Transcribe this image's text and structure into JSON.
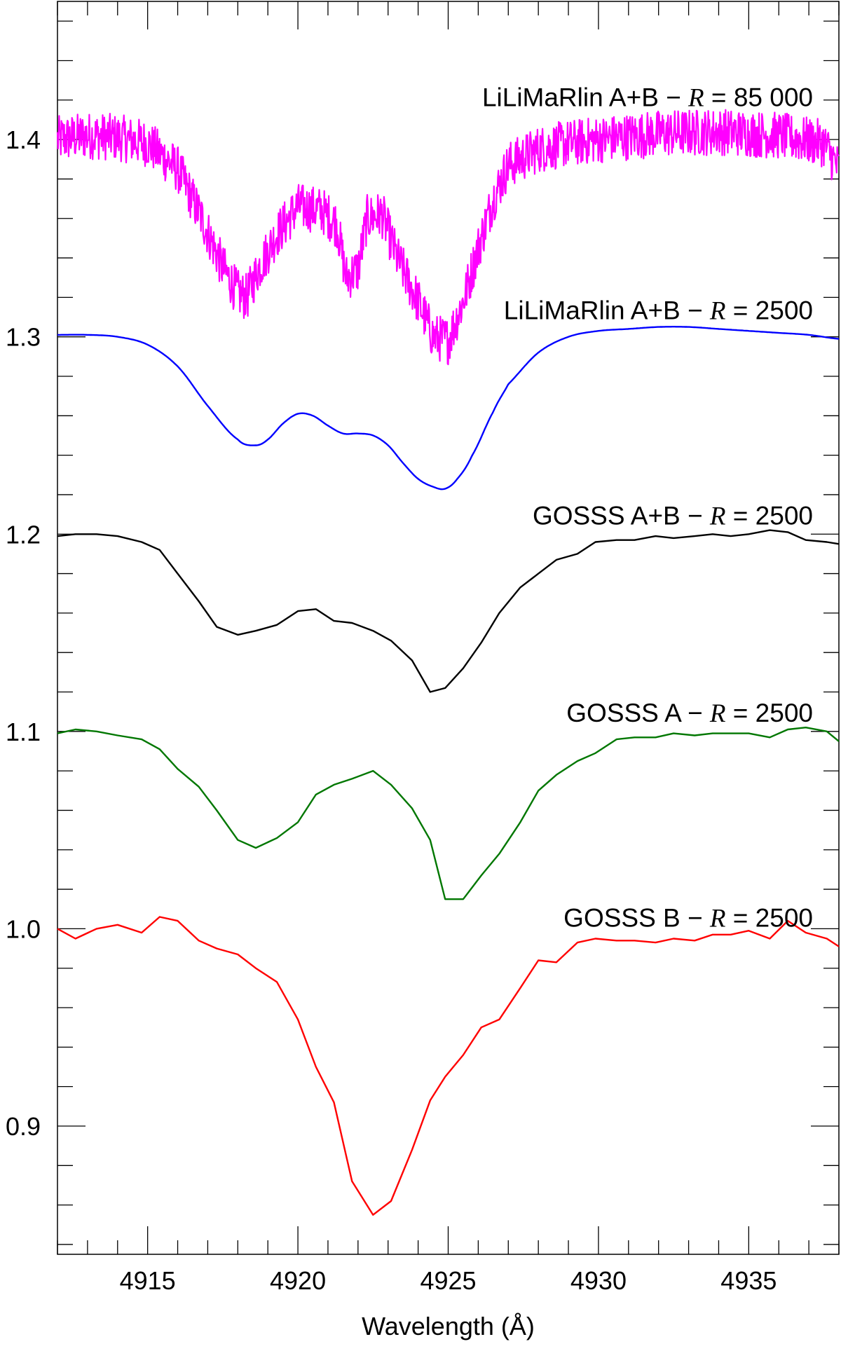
{
  "chart_data": {
    "type": "line",
    "xlabel": "Wavelength (Å)",
    "ylabel": "",
    "xlim": [
      4912.0,
      4938.0
    ],
    "ylim": [
      0.835,
      1.47
    ],
    "x_ticks": [
      4915,
      4920,
      4925,
      4930,
      4935
    ],
    "x_tick_labels": [
      "4915",
      "4920",
      "4925",
      "4930",
      "4935"
    ],
    "y_ticks": [
      0.9,
      1.0,
      1.1,
      1.2,
      1.3,
      1.4
    ],
    "y_tick_labels": [
      "0.9",
      "1.0",
      "1.1",
      "1.2",
      "1.3",
      "1.4"
    ],
    "grid": false,
    "legend": "none",
    "series": [
      {
        "name": "LiLiMaRlin A+B",
        "label_prefix": "LiLiMaRlin A+B − ",
        "label_r": "R",
        "label_suffix": " = 85 000",
        "color": "#ff00ff",
        "noise": 0.012,
        "x": [
          4912.0,
          4913.0,
          4914.0,
          4915.0,
          4916.0,
          4916.8,
          4917.5,
          4918.0,
          4918.3,
          4918.7,
          4919.3,
          4920.0,
          4920.8,
          4921.3,
          4921.6,
          4922.0,
          4922.3,
          4922.8,
          4923.3,
          4924.0,
          4924.5,
          4925.0,
          4925.5,
          4926.0,
          4926.5,
          4927.0,
          4928.0,
          4929.0,
          4930.0,
          4932.0,
          4934.0,
          4936.0,
          4937.5,
          4938.0
        ],
        "y": [
          1.4,
          1.402,
          1.401,
          1.398,
          1.385,
          1.36,
          1.335,
          1.322,
          1.32,
          1.335,
          1.352,
          1.366,
          1.364,
          1.357,
          1.33,
          1.334,
          1.36,
          1.362,
          1.34,
          1.318,
          1.3,
          1.298,
          1.318,
          1.345,
          1.37,
          1.387,
          1.395,
          1.398,
          1.4,
          1.403,
          1.404,
          1.402,
          1.398,
          1.385
        ]
      },
      {
        "name": "LiLiMaRlin A+B",
        "label_prefix": "LiLiMaRlin A+B − ",
        "label_r": "R",
        "label_suffix": " = 2500",
        "color": "#0000ff",
        "noise": 0,
        "x": [
          4912.0,
          4913.0,
          4914.0,
          4915.0,
          4916.0,
          4917.0,
          4918.0,
          4918.6,
          4919.0,
          4919.5,
          4920.0,
          4920.5,
          4921.0,
          4921.5,
          4922.0,
          4922.5,
          4923.0,
          4923.5,
          4924.0,
          4924.5,
          4924.9,
          4925.3,
          4925.8,
          4926.5,
          4927.0,
          4928.0,
          4929.0,
          4930.0,
          4931.0,
          4932.0,
          4933.0,
          4934.0,
          4935.0,
          4936.0,
          4937.0,
          4938.0
        ],
        "y": [
          1.301,
          1.301,
          1.3,
          1.296,
          1.285,
          1.265,
          1.248,
          1.245,
          1.248,
          1.256,
          1.261,
          1.26,
          1.255,
          1.251,
          1.251,
          1.25,
          1.245,
          1.236,
          1.228,
          1.224,
          1.223,
          1.228,
          1.24,
          1.262,
          1.276,
          1.292,
          1.3,
          1.303,
          1.304,
          1.305,
          1.305,
          1.304,
          1.303,
          1.302,
          1.301,
          1.299
        ]
      },
      {
        "name": "GOSSS A+B",
        "label_prefix": "GOSSS A+B − ",
        "label_r": "R",
        "label_suffix": " = 2500",
        "color": "#000000",
        "noise": 0,
        "x": [
          4912.0,
          4912.6,
          4913.3,
          4914.0,
          4914.8,
          4915.4,
          4916.0,
          4916.7,
          4917.3,
          4918.0,
          4918.6,
          4919.3,
          4920.0,
          4920.6,
          4921.2,
          4921.8,
          4922.5,
          4923.1,
          4923.8,
          4924.4,
          4924.9,
          4925.5,
          4926.1,
          4926.7,
          4927.4,
          4928.0,
          4928.6,
          4929.3,
          4929.9,
          4930.6,
          4931.2,
          4931.9,
          4932.5,
          4933.2,
          4933.8,
          4934.4,
          4935.0,
          4935.7,
          4936.3,
          4936.9,
          4937.6,
          4938.0
        ],
        "y": [
          1.199,
          1.2,
          1.2,
          1.199,
          1.196,
          1.192,
          1.18,
          1.166,
          1.153,
          1.149,
          1.151,
          1.154,
          1.161,
          1.162,
          1.156,
          1.155,
          1.151,
          1.146,
          1.136,
          1.12,
          1.122,
          1.132,
          1.145,
          1.16,
          1.173,
          1.18,
          1.187,
          1.19,
          1.196,
          1.197,
          1.197,
          1.199,
          1.198,
          1.199,
          1.2,
          1.199,
          1.2,
          1.202,
          1.201,
          1.197,
          1.196,
          1.195
        ]
      },
      {
        "name": "GOSSS A",
        "label_prefix": "GOSSS A − ",
        "label_r": "R",
        "label_suffix": " = 2500",
        "color": "#007700",
        "noise": 0,
        "x": [
          4912.0,
          4912.6,
          4913.3,
          4914.0,
          4914.8,
          4915.4,
          4916.0,
          4916.7,
          4917.3,
          4918.0,
          4918.6,
          4919.3,
          4920.0,
          4920.6,
          4921.2,
          4921.8,
          4922.5,
          4923.1,
          4923.8,
          4924.4,
          4924.9,
          4925.5,
          4926.1,
          4926.7,
          4927.4,
          4928.0,
          4928.6,
          4929.3,
          4929.9,
          4930.6,
          4931.2,
          4931.9,
          4932.5,
          4933.2,
          4933.8,
          4934.4,
          4935.0,
          4935.7,
          4936.3,
          4936.9,
          4937.6,
          4938.0
        ],
        "y": [
          1.099,
          1.101,
          1.1,
          1.098,
          1.096,
          1.091,
          1.081,
          1.072,
          1.06,
          1.045,
          1.041,
          1.046,
          1.054,
          1.068,
          1.073,
          1.076,
          1.08,
          1.073,
          1.061,
          1.045,
          1.015,
          1.015,
          1.027,
          1.038,
          1.054,
          1.07,
          1.078,
          1.085,
          1.089,
          1.096,
          1.097,
          1.097,
          1.099,
          1.098,
          1.099,
          1.099,
          1.099,
          1.097,
          1.101,
          1.102,
          1.1,
          1.095
        ]
      },
      {
        "name": "GOSSS B",
        "label_prefix": "GOSSS B − ",
        "label_r": "R",
        "label_suffix": " = 2500",
        "color": "#ff0000",
        "noise": 0,
        "x": [
          4912.0,
          4912.6,
          4913.3,
          4914.0,
          4914.8,
          4915.4,
          4916.0,
          4916.7,
          4917.3,
          4918.0,
          4918.6,
          4919.3,
          4920.0,
          4920.6,
          4921.2,
          4921.8,
          4922.5,
          4923.1,
          4923.8,
          4924.4,
          4924.9,
          4925.5,
          4926.1,
          4926.7,
          4927.4,
          4928.0,
          4928.6,
          4929.3,
          4929.9,
          4930.6,
          4931.2,
          4931.9,
          4932.5,
          4933.2,
          4933.8,
          4934.4,
          4935.0,
          4935.7,
          4936.3,
          4936.9,
          4937.6,
          4938.0
        ],
        "y": [
          1.0,
          0.995,
          1.0,
          1.002,
          0.998,
          1.006,
          1.004,
          0.994,
          0.99,
          0.987,
          0.98,
          0.973,
          0.954,
          0.93,
          0.912,
          0.872,
          0.855,
          0.862,
          0.888,
          0.913,
          0.925,
          0.936,
          0.95,
          0.954,
          0.97,
          0.984,
          0.983,
          0.993,
          0.995,
          0.994,
          0.994,
          0.993,
          0.995,
          0.994,
          0.997,
          0.997,
          0.999,
          0.995,
          1.004,
          0.998,
          0.995,
          0.991
        ]
      }
    ]
  }
}
